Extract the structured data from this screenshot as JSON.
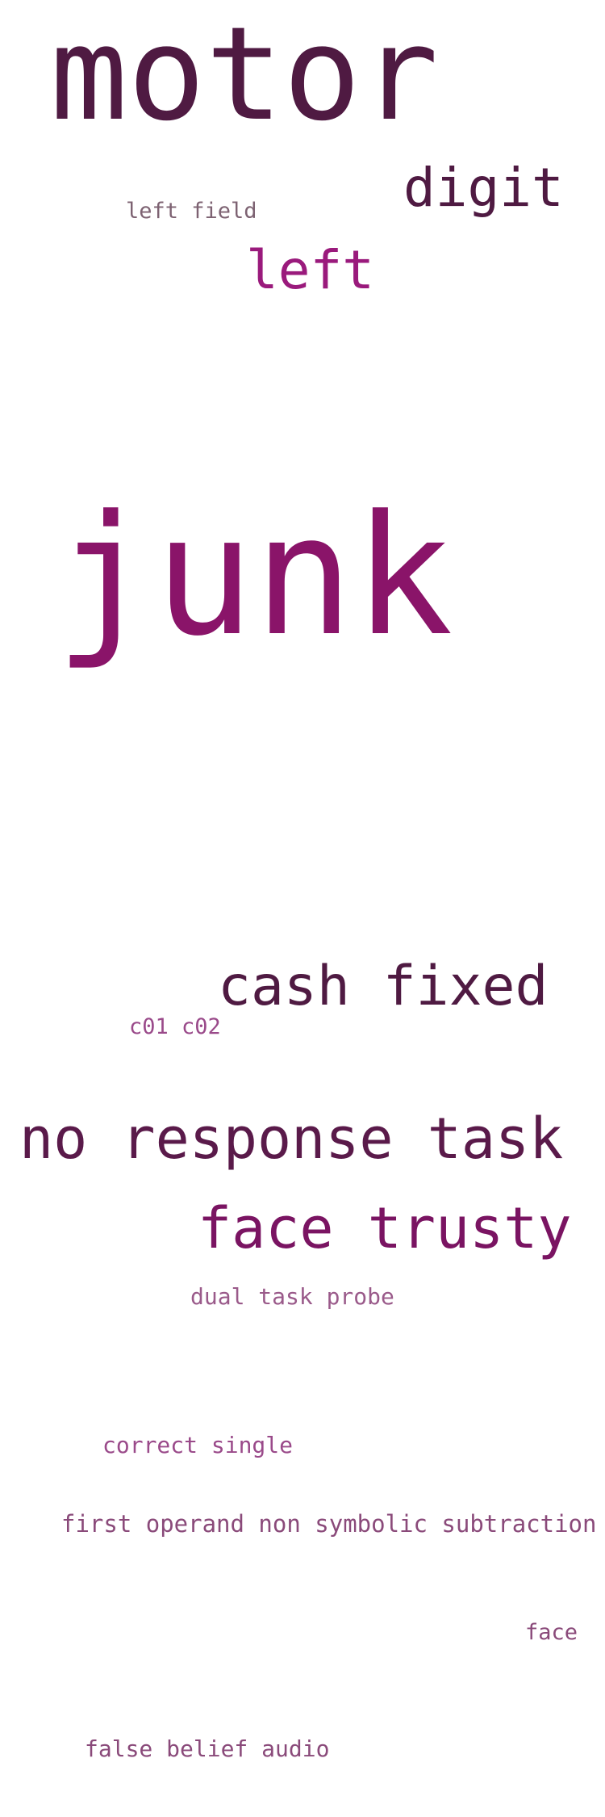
{
  "words": [
    {
      "text": "motor",
      "color": "#4f1a42"
    },
    {
      "text": "digit",
      "color": "#4f1a42"
    },
    {
      "text": "left field",
      "color": "#7d6272"
    },
    {
      "text": "left",
      "color": "#9a1a7c"
    },
    {
      "text": "junk",
      "color": "#8a1469"
    },
    {
      "text": "cash fixed",
      "color": "#4f1a42"
    },
    {
      "text": "c01 c02",
      "color": "#9a4a8a"
    },
    {
      "text": "no response task",
      "color": "#5a1a4a"
    },
    {
      "text": "face trusty",
      "color": "#7a1462"
    },
    {
      "text": "dual task probe",
      "color": "#9a5a8a"
    },
    {
      "text": "correct single",
      "color": "#9a4a8a"
    },
    {
      "text": "first operand non symbolic subtraction",
      "color": "#8a4a7a"
    },
    {
      "text": "face",
      "color": "#8a4a7a"
    },
    {
      "text": "false belief audio",
      "color": "#8a4a7a"
    }
  ]
}
